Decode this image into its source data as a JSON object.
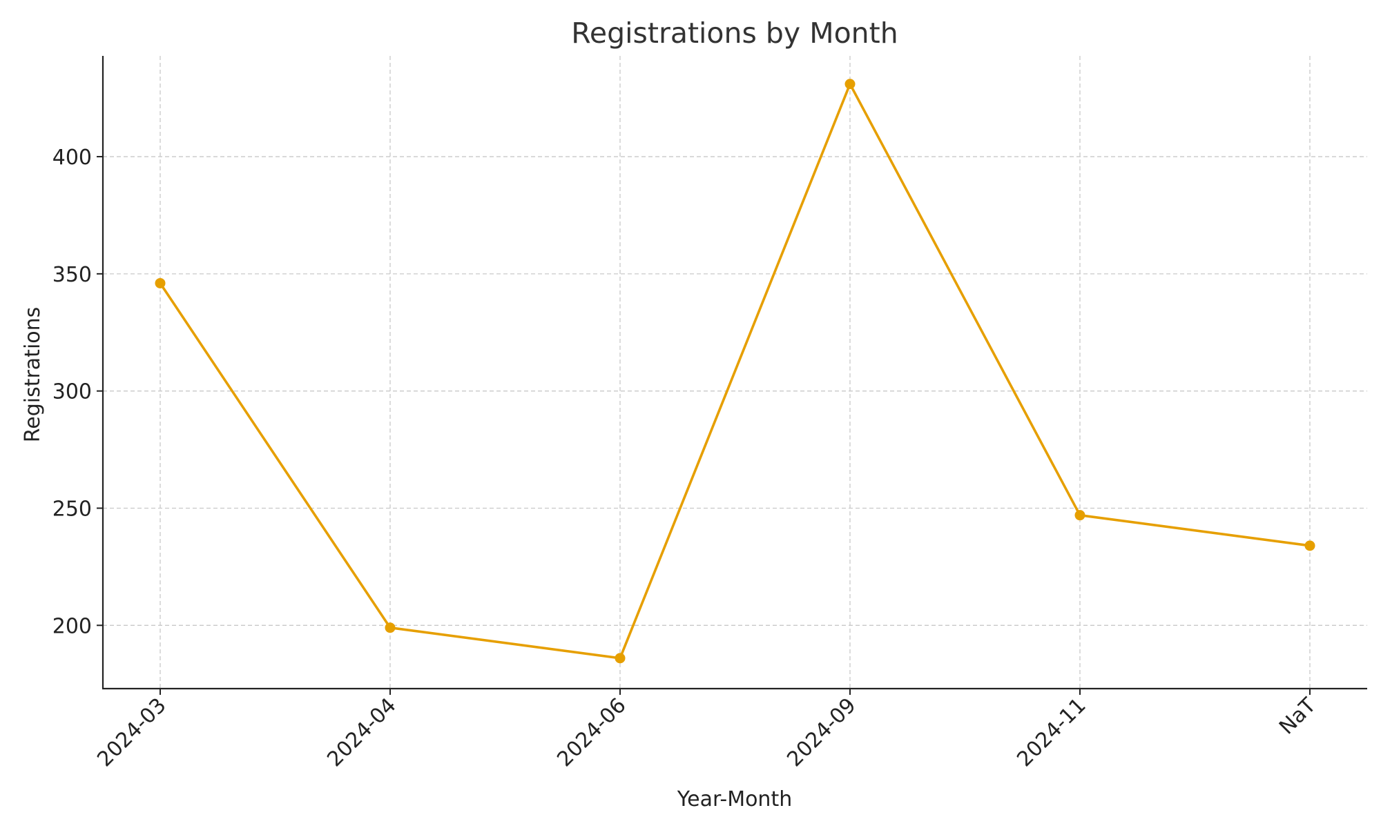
{
  "chart_data": {
    "type": "line",
    "title": "Registrations by Month",
    "xlabel": "Year-Month",
    "ylabel": "Registrations",
    "categories": [
      "2024-03",
      "2024-04",
      "2024-06",
      "2024-09",
      "2024-11",
      "NaT"
    ],
    "series": [
      {
        "values": [
          346,
          199,
          186,
          431,
          247,
          234
        ],
        "color": "#E69F00"
      }
    ],
    "ylim": [
      173,
      443
    ],
    "yticks": [
      200,
      250,
      300,
      350,
      400
    ],
    "grid": true,
    "legend": "none",
    "x_tick_rotation_deg": 45,
    "markers": true
  }
}
